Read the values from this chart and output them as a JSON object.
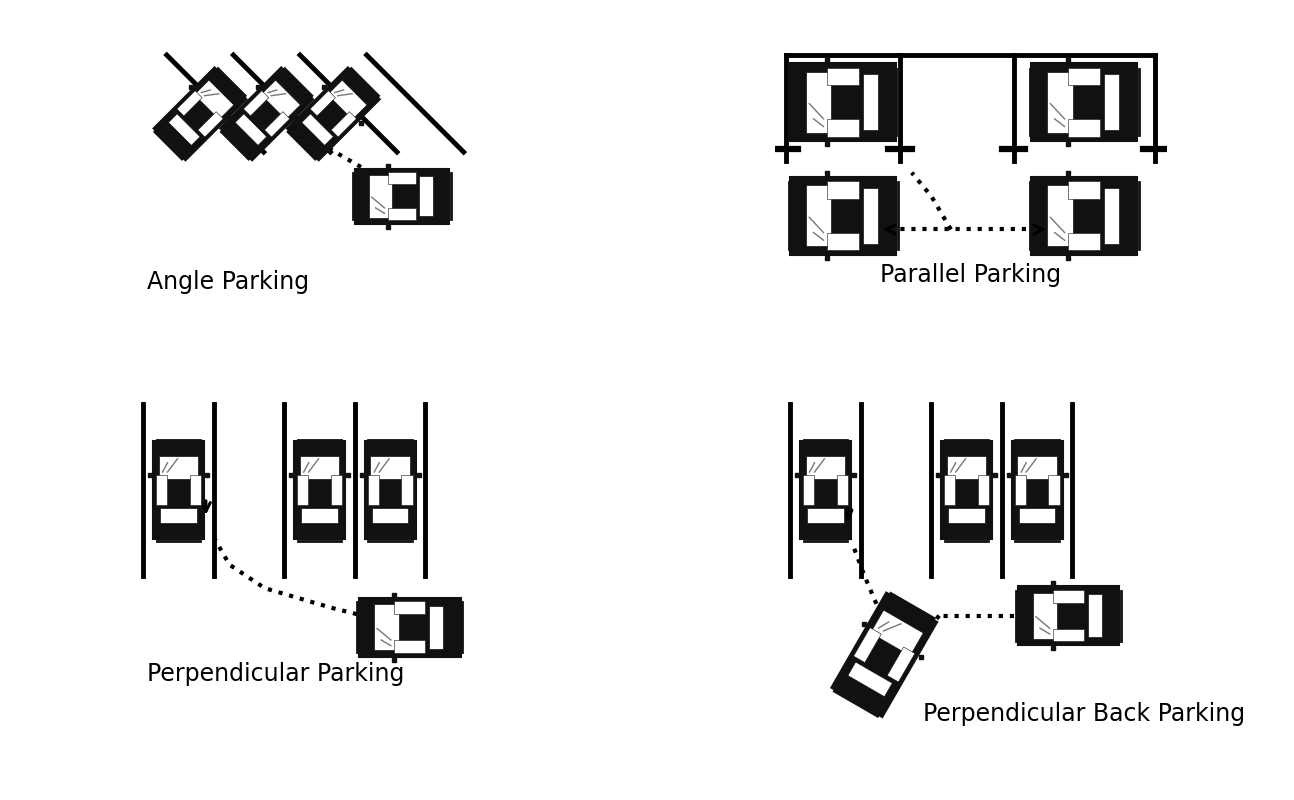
{
  "bg_color": "#ffffff",
  "title_angle": "Angle Parking",
  "title_parallel": "Parallel Parking",
  "title_perp": "Perpendicular Parking",
  "title_perp_back": "Perpendicular Back Parking",
  "title_fontsize": 17,
  "car_color": "#111111",
  "car_window_color": "#ffffff",
  "dot_lw": 3.0,
  "dot_color": "#000000",
  "line_lw": 3.5
}
